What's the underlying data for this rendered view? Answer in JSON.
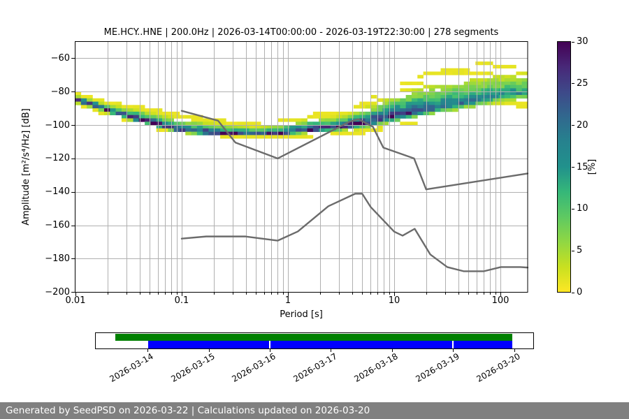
{
  "chart_data": {
    "type": "heatmap",
    "title": "ME.HCY..HNE | 200.0Hz | 2026-03-14T00:00:00 - 2026-03-19T22:30:00 | 278 segments",
    "xlabel": "Period [s]",
    "ylabel": "Amplitude [m²/s⁴/Hz] [dB]",
    "x_scale": "log",
    "xlim": [
      0.01,
      180.4
    ],
    "ylim": [
      -200,
      -50
    ],
    "grid": true,
    "grid_color": "#b0b0b0",
    "x_ticks": [
      {
        "v": 0.01,
        "label": "0.01"
      },
      {
        "v": 0.1,
        "label": "0.1"
      },
      {
        "v": 1,
        "label": "1"
      },
      {
        "v": 10,
        "label": "10"
      },
      {
        "v": 100,
        "label": "100"
      }
    ],
    "y_ticks": [
      {
        "v": -60,
        "label": "−60"
      },
      {
        "v": -80,
        "label": "−80"
      },
      {
        "v": -100,
        "label": "−100"
      },
      {
        "v": -120,
        "label": "−120"
      },
      {
        "v": -140,
        "label": "−140"
      },
      {
        "v": -160,
        "label": "−160"
      },
      {
        "v": -180,
        "label": "−180"
      },
      {
        "v": -200,
        "label": "−200"
      }
    ],
    "colorbar": {
      "label": "[%]",
      "ticks": [
        0,
        5,
        10,
        15,
        20,
        25,
        30
      ],
      "vmin": 0,
      "vmax": 30,
      "colormap": "viridis_r",
      "viridis_stops": [
        "#440154",
        "#482878",
        "#3e4989",
        "#31688e",
        "#26828e",
        "#21918c",
        "#35b779",
        "#5ec962",
        "#90d743",
        "#c8e020",
        "#fde725"
      ]
    },
    "histogram_ridge": [
      {
        "period": 0.01,
        "mode": -85.0,
        "top": -80.5,
        "bottom": -88.0,
        "peak_pct": 30
      },
      {
        "period": 0.014,
        "mode": -87.5,
        "top": -83.0,
        "bottom": -91.0,
        "peak_pct": 30
      },
      {
        "period": 0.02,
        "mode": -91.0,
        "top": -86.0,
        "bottom": -94.5,
        "peak_pct": 30
      },
      {
        "period": 0.03,
        "mode": -94.5,
        "top": -87.5,
        "bottom": -98.0,
        "peak_pct": 30
      },
      {
        "period": 0.05,
        "mode": -98.5,
        "top": -89.5,
        "bottom": -102.0,
        "peak_pct": 30
      },
      {
        "period": 0.07,
        "mode": -101.0,
        "top": -91.5,
        "bottom": -104.0,
        "peak_pct": 30
      },
      {
        "period": 0.1,
        "mode": -103.5,
        "top": -93.5,
        "bottom": -106.0,
        "peak_pct": 30
      },
      {
        "period": 0.15,
        "mode": -104.5,
        "top": -95.0,
        "bottom": -106.5,
        "peak_pct": 30
      },
      {
        "period": 0.22,
        "mode": -105.0,
        "top": -96.5,
        "bottom": -107.0,
        "peak_pct": 30
      },
      {
        "period": 0.32,
        "mode": -105.5,
        "top": -98.0,
        "bottom": -107.5,
        "peak_pct": 30
      },
      {
        "period": 0.5,
        "mode": -106.0,
        "top": -99.0,
        "bottom": -107.5,
        "peak_pct": 30
      },
      {
        "period": 0.8,
        "mode": -105.5,
        "top": -97.5,
        "bottom": -107.5,
        "peak_pct": 30
      },
      {
        "period": 1.2,
        "mode": -104.0,
        "top": -94.5,
        "bottom": -107.5,
        "peak_pct": 30
      },
      {
        "period": 1.8,
        "mode": -102.5,
        "top": -93.0,
        "bottom": -107.0,
        "peak_pct": 30
      },
      {
        "period": 2.6,
        "mode": -101.5,
        "top": -92.5,
        "bottom": -106.5,
        "peak_pct": 30
      },
      {
        "period": 4.0,
        "mode": -100.0,
        "top": -90.0,
        "bottom": -106.0,
        "peak_pct": 29
      },
      {
        "period": 6.0,
        "mode": -98.0,
        "top": -84.0,
        "bottom": -104.5,
        "peak_pct": 28
      },
      {
        "period": 9.0,
        "mode": -95.5,
        "top": -78.0,
        "bottom": -102.5,
        "peak_pct": 27
      },
      {
        "period": 14.0,
        "mode": -93.0,
        "top": -72.5,
        "bottom": -100.0,
        "peak_pct": 26
      },
      {
        "period": 20.0,
        "mode": -91.0,
        "top": -69.0,
        "bottom": -98.0,
        "peak_pct": 24
      },
      {
        "period": 30.0,
        "mode": -89.0,
        "top": -66.0,
        "bottom": -96.0,
        "peak_pct": 22
      },
      {
        "period": 45.0,
        "mode": -87.0,
        "top": -64.0,
        "bottom": -94.5,
        "peak_pct": 20
      },
      {
        "period": 70.0,
        "mode": -84.5,
        "top": -62.5,
        "bottom": -93.0,
        "peak_pct": 18
      },
      {
        "period": 100.0,
        "mode": -82.5,
        "top": -62.0,
        "bottom": -92.0,
        "peak_pct": 17
      },
      {
        "period": 140.0,
        "mode": -81.0,
        "top": -61.5,
        "bottom": -91.0,
        "peak_pct": 16
      },
      {
        "period": 180.0,
        "mode": -80.0,
        "top": -61.0,
        "bottom": -90.0,
        "peak_pct": 16
      }
    ],
    "noise_models": {
      "color": "#6b6b6b",
      "high_model": [
        [
          0.1,
          -91.5
        ],
        [
          0.22,
          -97.4
        ],
        [
          0.32,
          -110.5
        ],
        [
          0.8,
          -120.0
        ],
        [
          3.8,
          -98.0
        ],
        [
          4.6,
          -96.5
        ],
        [
          6.3,
          -101.0
        ],
        [
          7.9,
          -113.5
        ],
        [
          15.4,
          -120.0
        ],
        [
          20.0,
          -138.5
        ],
        [
          180.4,
          -129.0
        ]
      ],
      "low_model": [
        [
          0.1,
          -168.0
        ],
        [
          0.17,
          -166.7
        ],
        [
          0.4,
          -166.7
        ],
        [
          0.8,
          -169.2
        ],
        [
          1.24,
          -163.7
        ],
        [
          2.4,
          -148.6
        ],
        [
          4.3,
          -141.1
        ],
        [
          5.0,
          -141.1
        ],
        [
          6.0,
          -149.0
        ],
        [
          10.0,
          -163.8
        ],
        [
          12.0,
          -166.2
        ],
        [
          15.6,
          -162.1
        ],
        [
          21.9,
          -177.5
        ],
        [
          31.6,
          -185.0
        ],
        [
          45.0,
          -187.5
        ],
        [
          70.0,
          -187.5
        ],
        [
          101.0,
          -185.0
        ],
        [
          154.0,
          -185.0
        ],
        [
          180.4,
          -185.3
        ]
      ]
    },
    "coverage_timeline": {
      "tick_labels": [
        "2026-03-14",
        "2026-03-15",
        "2026-03-16",
        "2026-03-17",
        "2026-03-18",
        "2026-03-19",
        "2026-03-20"
      ],
      "tick_pcts": [
        11.97,
        25.89,
        39.81,
        53.74,
        67.66,
        81.58,
        95.5
      ],
      "green_bar": {
        "color": "#008000",
        "start_pct": 4.54,
        "end_pct": 95.22
      },
      "blue_bars": {
        "color": "#0000ff",
        "segments": [
          [
            11.97,
            39.68
          ],
          [
            39.99,
            81.42
          ],
          [
            81.75,
            95.22
          ]
        ]
      }
    }
  },
  "footer": {
    "text": "Generated by SeedPSD on 2026-03-22 | Calculations updated on 2026-03-20",
    "bg": "#808080"
  }
}
